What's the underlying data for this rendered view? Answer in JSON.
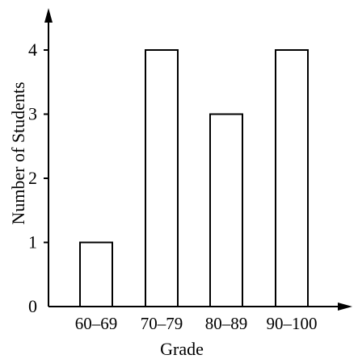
{
  "chart_data": {
    "type": "bar",
    "categories": [
      "60–69",
      "70–79",
      "80–89",
      "90–100"
    ],
    "values": [
      1,
      4,
      3,
      4
    ],
    "title": "",
    "xlabel": "Grade",
    "ylabel": "Number of Students",
    "yticks": [
      0,
      1,
      2,
      3,
      4
    ],
    "ylim": [
      0,
      4.4
    ],
    "grid": false,
    "bar_fill": "#ffffff",
    "bar_stroke": "#000000"
  }
}
